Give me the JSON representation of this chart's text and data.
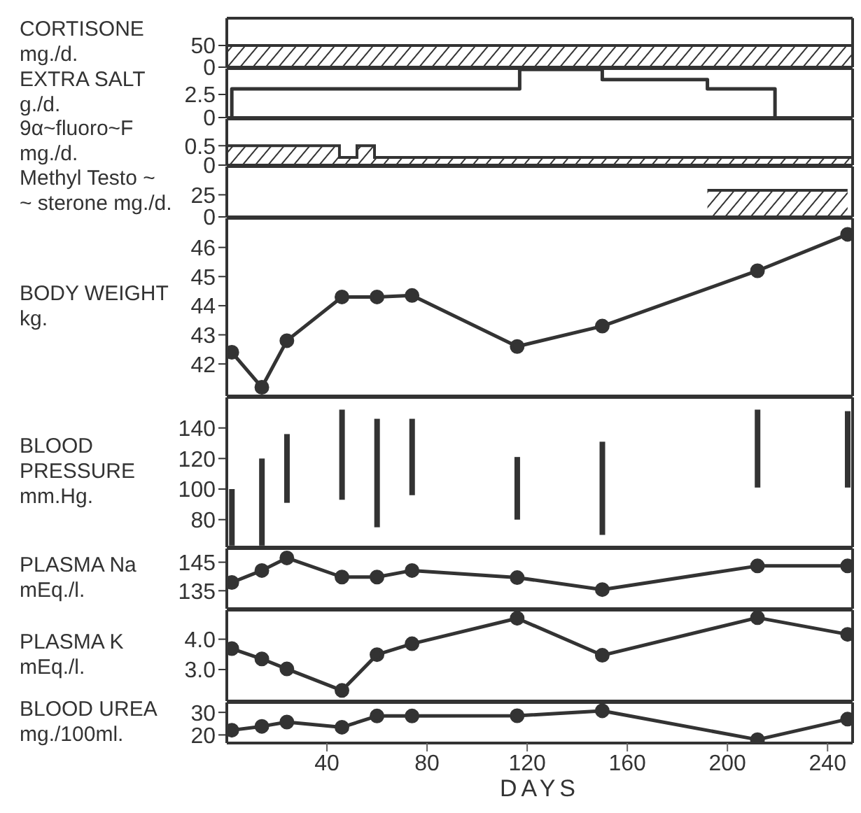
{
  "chart_data": [
    {
      "type": "area",
      "ylabel": "CORTISONE\nmg./d.",
      "x": [
        0,
        250
      ],
      "xlim": [
        0,
        250
      ],
      "ylim": [
        0,
        113
      ],
      "yticks": [
        0,
        50
      ],
      "tick_labels": "y",
      "series": [
        {
          "color": "#333333",
          "values": [
            50,
            50
          ]
        }
      ]
    },
    {
      "type": "step",
      "ylabel": "EXTRA SALT\ng./d.",
      "x": [
        2,
        2,
        117,
        150,
        192,
        219
      ],
      "xlim": [
        0,
        250
      ],
      "ylim": [
        0,
        5.3
      ],
      "yticks": [
        0,
        2.5
      ],
      "tick_labels": "y",
      "series": [
        {
          "color": "#333333",
          "values": [
            0,
            3.1,
            5.2,
            4.1,
            3.1,
            0
          ]
        }
      ]
    },
    {
      "type": "area",
      "ylabel": "9α~fluoro~F\nmg./d.",
      "x": [
        0,
        45,
        45,
        52,
        52,
        59,
        59,
        250
      ],
      "xlim": [
        0,
        250
      ],
      "ylim": [
        0,
        1.19
      ],
      "yticks": [
        0,
        0.5
      ],
      "tick_labels": "y",
      "series": [
        {
          "color": "#333333",
          "values": [
            0.5,
            0.5,
            0.2,
            0.2,
            0.5,
            0.5,
            0.2,
            0.2
          ]
        }
      ]
    },
    {
      "type": "area",
      "ylabel": "Methyl Testo ~\n~ sterone mg./d.",
      "x": [
        192,
        248
      ],
      "xlim": [
        0,
        250
      ],
      "ylim": [
        0,
        57
      ],
      "yticks": [
        0,
        25
      ],
      "tick_labels": "y",
      "series": [
        {
          "color": "#333333",
          "values": [
            30,
            30
          ]
        }
      ]
    },
    {
      "type": "line",
      "ylabel": "BODY WEIGHT\nkg.",
      "x": [
        2,
        14,
        24,
        46,
        60,
        74,
        116,
        150,
        212,
        248
      ],
      "xlim": [
        0,
        250
      ],
      "ylim": [
        40.9,
        47
      ],
      "yticks": [
        42,
        43,
        44,
        45,
        46
      ],
      "tick_labels": "y",
      "marker": "circle",
      "series": [
        {
          "color": "#333333",
          "values": [
            42.4,
            41.2,
            42.8,
            44.3,
            44.3,
            44.35,
            42.6,
            43.3,
            45.2,
            46.45
          ]
        }
      ]
    },
    {
      "type": "bar",
      "ylabel": "BLOOD\nPRESSURE\nmm.Hg.",
      "x": [
        2,
        14,
        24,
        46,
        60,
        74,
        116,
        150,
        212,
        248
      ],
      "xlim": [
        0,
        250
      ],
      "ylim": [
        62,
        160
      ],
      "yticks": [
        80,
        100,
        120,
        140
      ],
      "tick_labels": "y",
      "series": [
        {
          "color": "#333333",
          "base": [
            63,
            63,
            91,
            93,
            75,
            96,
            80,
            70,
            101,
            101
          ],
          "values": [
            37,
            57,
            45,
            59,
            71,
            50,
            41,
            61,
            51,
            50
          ]
        }
      ]
    },
    {
      "type": "line",
      "ylabel": "PLASMA Na\nmEq./l.",
      "x": [
        2,
        14,
        24,
        46,
        60,
        74,
        116,
        150,
        212,
        248
      ],
      "xlim": [
        0,
        250
      ],
      "ylim": [
        128.7,
        149.8
      ],
      "yticks": [
        135,
        145
      ],
      "tick_labels": "y",
      "marker": "circle",
      "series": [
        {
          "color": "#333333",
          "values": [
            137.9,
            142.1,
            146.5,
            139.8,
            139.8,
            142.1,
            139.6,
            135.4,
            143.7,
            143.7
          ]
        }
      ]
    },
    {
      "type": "line",
      "ylabel": "PLASMA  K\nmEq./l.",
      "x": [
        2,
        14,
        24,
        46,
        60,
        74,
        116,
        150,
        212,
        248
      ],
      "xlim": [
        0,
        250
      ],
      "ylim": [
        1.96,
        4.96
      ],
      "yticks": [
        {
          "value": 3,
          "label": "3.0"
        },
        {
          "value": 4,
          "label": "4.0"
        }
      ],
      "tick_labels": "y",
      "marker": "circle",
      "series": [
        {
          "color": "#333333",
          "values": [
            3.69,
            3.35,
            3.02,
            2.31,
            3.49,
            3.85,
            4.69,
            3.47,
            4.71,
            4.16
          ]
        }
      ]
    },
    {
      "type": "line",
      "ylabel": "BLOOD UREA\nmg./100ml.",
      "xlabel": "DAYS",
      "x": [
        2,
        14,
        24,
        46,
        60,
        74,
        116,
        150,
        212,
        248
      ],
      "xlim": [
        0,
        250
      ],
      "xticks": [
        40,
        80,
        120,
        160,
        200,
        240
      ],
      "ylim": [
        16.4,
        34.4
      ],
      "yticks": [
        20,
        30
      ],
      "marker": "circle",
      "series": [
        {
          "color": "#333333",
          "values": [
            22.1,
            23.8,
            25.7,
            23.4,
            28.4,
            28.4,
            28.5,
            30.7,
            17.9,
            27
          ]
        }
      ]
    }
  ]
}
